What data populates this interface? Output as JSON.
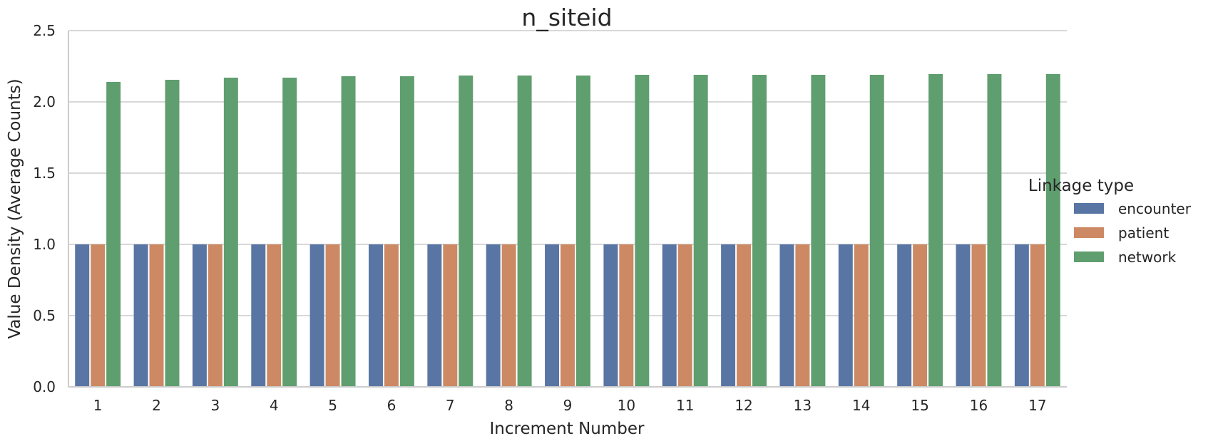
{
  "chart_data": {
    "type": "bar",
    "title": "n_siteid",
    "xlabel": "Increment Number",
    "ylabel": "Value Density (Average Counts)",
    "categories": [
      "1",
      "2",
      "3",
      "4",
      "5",
      "6",
      "7",
      "8",
      "9",
      "10",
      "11",
      "12",
      "13",
      "14",
      "15",
      "16",
      "17"
    ],
    "yticks": [
      "0.0",
      "0.5",
      "1.0",
      "1.5",
      "2.0",
      "2.5"
    ],
    "ylim": [
      0,
      2.5
    ],
    "grid": true,
    "legend": {
      "title": "Linkage type",
      "placement": "right"
    },
    "series": [
      {
        "name": "encounter",
        "color": "#5975a4",
        "values": [
          1.0,
          1.0,
          1.0,
          1.0,
          1.0,
          1.0,
          1.0,
          1.0,
          1.0,
          1.0,
          1.0,
          1.0,
          1.0,
          1.0,
          1.0,
          1.0,
          1.0
        ]
      },
      {
        "name": "patient",
        "color": "#cc8963",
        "values": [
          1.0,
          1.0,
          1.0,
          1.0,
          1.0,
          1.0,
          1.0,
          1.0,
          1.0,
          1.0,
          1.0,
          1.0,
          1.0,
          1.0,
          1.0,
          1.0,
          1.0
        ]
      },
      {
        "name": "network",
        "color": "#5f9e6e",
        "values": [
          2.14,
          2.155,
          2.17,
          2.17,
          2.18,
          2.18,
          2.185,
          2.185,
          2.185,
          2.19,
          2.19,
          2.19,
          2.19,
          2.19,
          2.195,
          2.195,
          2.195
        ]
      }
    ]
  }
}
